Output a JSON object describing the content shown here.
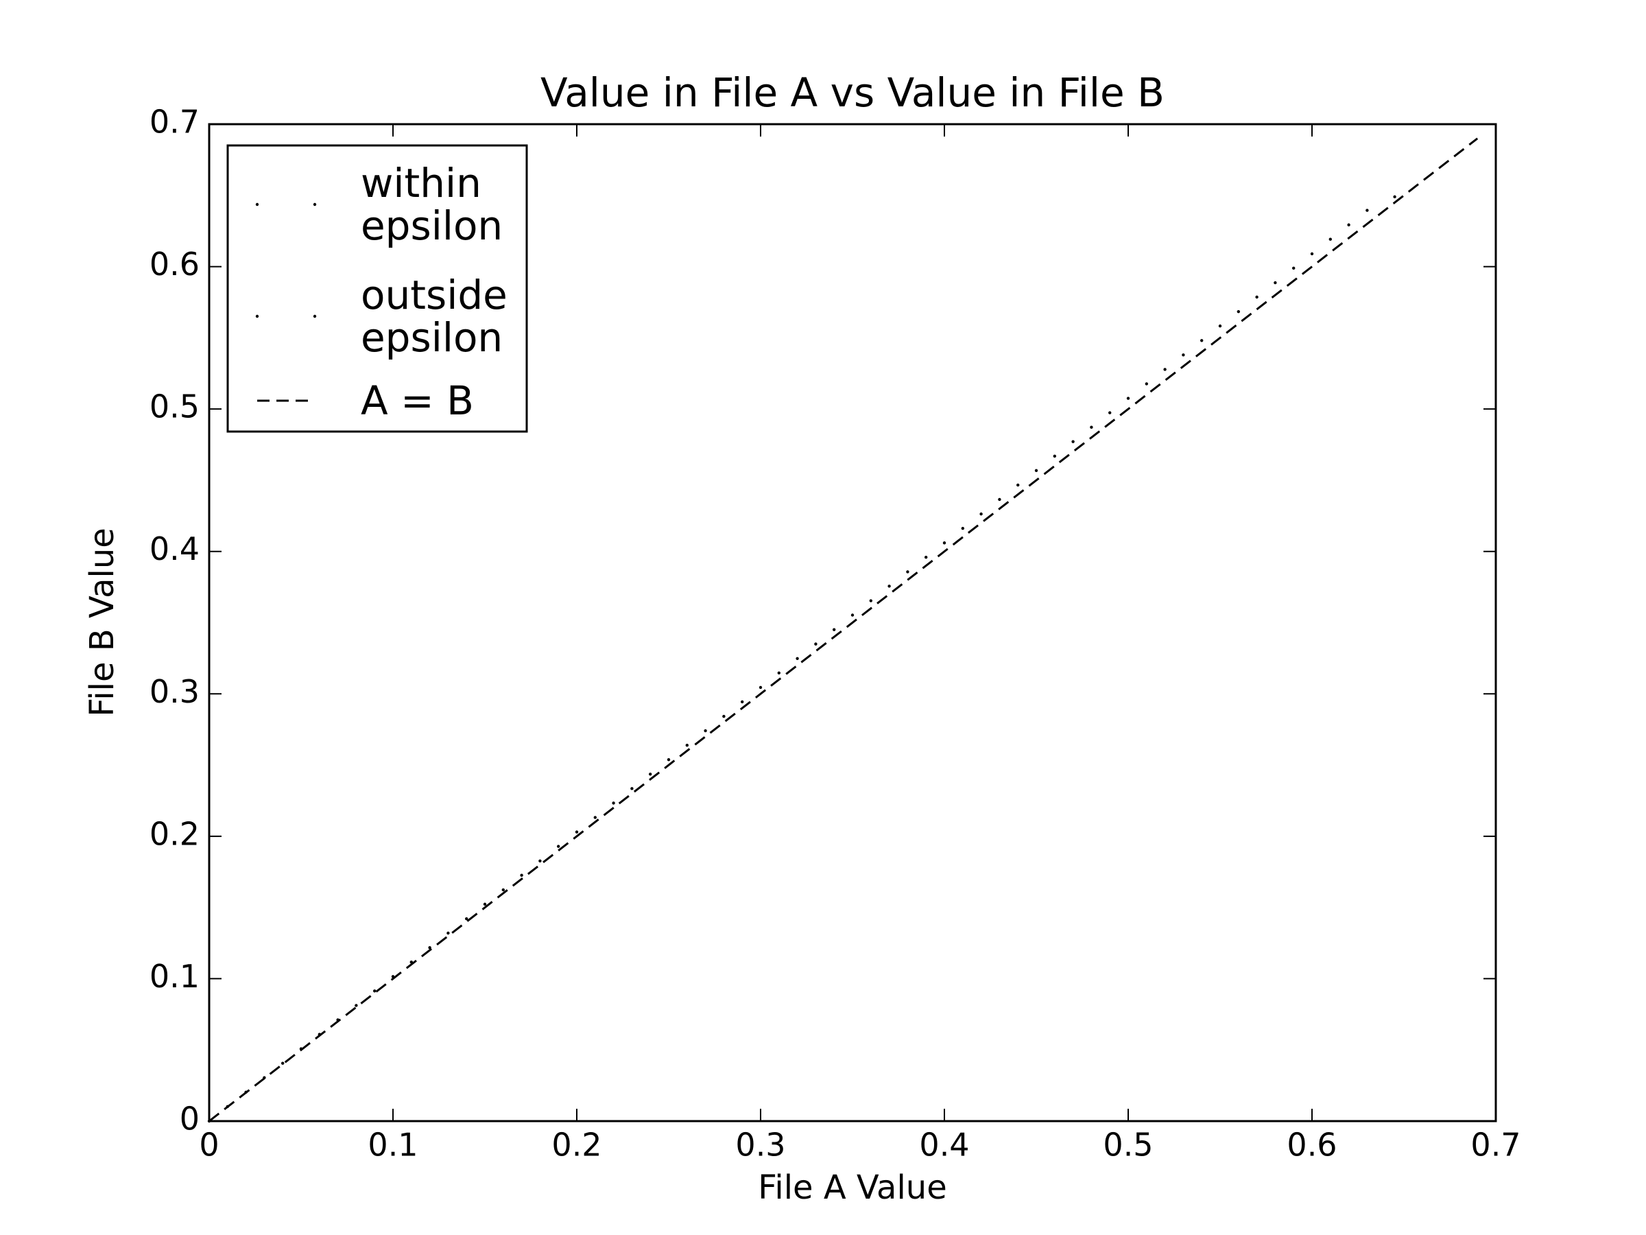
{
  "chart_data": {
    "type": "scatter",
    "title": "Value in File A vs Value in File B",
    "x_label": "File A Value",
    "y_label": "File B Value",
    "xlim": [
      0,
      0.7
    ],
    "ylim": [
      0,
      0.7
    ],
    "xticks": [
      0,
      0.1,
      0.2,
      0.3,
      0.4,
      0.5,
      0.6,
      0.7
    ],
    "yticks": [
      0,
      0.1,
      0.2,
      0.3,
      0.4,
      0.5,
      0.6,
      0.7
    ],
    "legend": "upper left",
    "series": [
      {
        "name": "within\nepsilon",
        "color": "#000000",
        "marker": "point",
        "x": [
          0,
          0.01,
          0.02,
          0.03,
          0.04,
          0.05,
          0.06,
          0.07,
          0.08,
          0.09,
          0.1,
          0.11,
          0.12,
          0.13,
          0.14,
          0.15,
          0.16,
          0.17,
          0.18,
          0.19,
          0.2,
          0.21,
          0.22,
          0.23,
          0.24,
          0.25,
          0.26,
          0.27,
          0.28,
          0.29,
          0.3,
          0.31,
          0.32,
          0.33,
          0.34,
          0.35,
          0.36,
          0.37,
          0.38,
          0.39,
          0.4,
          0.41,
          0.42,
          0.43,
          0.44,
          0.45,
          0.46,
          0.47,
          0.48,
          0.49,
          0.5,
          0.51,
          0.52,
          0.53,
          0.54,
          0.55,
          0.56,
          0.57,
          0.58,
          0.59,
          0.6,
          0.61,
          0.62,
          0.63
        ],
        "values": [
          0,
          0.0102,
          0.0203,
          0.0305,
          0.0406,
          0.0508,
          0.0609,
          0.0711,
          0.0812,
          0.0914,
          0.1015,
          0.1117,
          0.1218,
          0.132,
          0.1421,
          0.1523,
          0.1624,
          0.1726,
          0.1827,
          0.1929,
          0.203,
          0.2132,
          0.2233,
          0.2335,
          0.2436,
          0.2538,
          0.2639,
          0.2741,
          0.2842,
          0.2944,
          0.3045,
          0.3147,
          0.3248,
          0.335,
          0.3451,
          0.3553,
          0.3654,
          0.3756,
          0.3857,
          0.3959,
          0.406,
          0.4162,
          0.4263,
          0.4365,
          0.4466,
          0.4568,
          0.4669,
          0.4771,
          0.4872,
          0.4974,
          0.5075,
          0.5177,
          0.5278,
          0.538,
          0.5481,
          0.5583,
          0.5684,
          0.5786,
          0.5887,
          0.5989,
          0.609,
          0.6192,
          0.6293,
          0.6395
        ]
      },
      {
        "name": "outside\nepsilon",
        "color": "#000000",
        "marker": "point",
        "x": [
          0.645
        ],
        "values": [
          0.649
        ]
      },
      {
        "name": "A = B",
        "color": "#000000",
        "marker": "line",
        "dashed": true,
        "x": [
          0,
          0.69
        ],
        "values": [
          0,
          0.69
        ]
      }
    ]
  }
}
